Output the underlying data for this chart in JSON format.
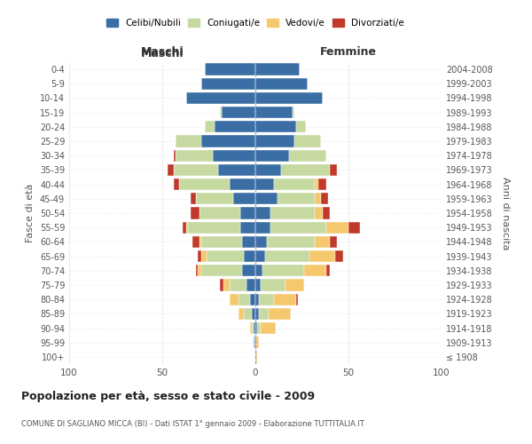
{
  "age_groups": [
    "100+",
    "95-99",
    "90-94",
    "85-89",
    "80-84",
    "75-79",
    "70-74",
    "65-69",
    "60-64",
    "55-59",
    "50-54",
    "45-49",
    "40-44",
    "35-39",
    "30-34",
    "25-29",
    "20-24",
    "15-19",
    "10-14",
    "5-9",
    "0-4"
  ],
  "birth_years": [
    "≤ 1908",
    "1909-1913",
    "1914-1918",
    "1919-1923",
    "1924-1928",
    "1929-1933",
    "1934-1938",
    "1939-1943",
    "1944-1948",
    "1949-1953",
    "1954-1958",
    "1959-1963",
    "1964-1968",
    "1969-1973",
    "1974-1978",
    "1979-1983",
    "1984-1988",
    "1989-1993",
    "1994-1998",
    "1999-2003",
    "2004-2008"
  ],
  "maschi": {
    "celibi": [
      0,
      1,
      1,
      2,
      3,
      5,
      7,
      6,
      7,
      8,
      8,
      12,
      14,
      20,
      23,
      29,
      22,
      18,
      37,
      29,
      27
    ],
    "coniugati": [
      0,
      0,
      1,
      4,
      6,
      9,
      22,
      20,
      22,
      28,
      22,
      20,
      27,
      24,
      20,
      14,
      5,
      1,
      0,
      0,
      0
    ],
    "vedovi": [
      0,
      0,
      1,
      3,
      5,
      3,
      2,
      3,
      1,
      1,
      0,
      0,
      0,
      0,
      0,
      0,
      0,
      0,
      0,
      0,
      0
    ],
    "divorziati": [
      0,
      0,
      0,
      0,
      0,
      2,
      1,
      2,
      4,
      2,
      5,
      3,
      3,
      3,
      1,
      0,
      0,
      0,
      0,
      0,
      0
    ]
  },
  "femmine": {
    "nubili": [
      0,
      0,
      1,
      2,
      2,
      3,
      4,
      5,
      6,
      8,
      8,
      12,
      10,
      14,
      18,
      21,
      22,
      20,
      36,
      28,
      24
    ],
    "coniugate": [
      0,
      0,
      2,
      5,
      8,
      13,
      22,
      24,
      26,
      30,
      24,
      20,
      22,
      26,
      20,
      14,
      5,
      1,
      0,
      0,
      0
    ],
    "vedove": [
      1,
      2,
      8,
      12,
      12,
      10,
      12,
      14,
      8,
      12,
      4,
      3,
      2,
      0,
      0,
      0,
      0,
      0,
      0,
      0,
      0
    ],
    "divorziate": [
      0,
      0,
      0,
      0,
      1,
      0,
      2,
      4,
      4,
      6,
      4,
      4,
      4,
      4,
      0,
      0,
      0,
      0,
      0,
      0,
      0
    ]
  },
  "colors": {
    "celibi": "#3a6ea5",
    "coniugati": "#c5d9a0",
    "vedovi": "#f5c86e",
    "divorziati": "#c0392b"
  },
  "xlim": 100,
  "title": "Popolazione per età, sesso e stato civile - 2009",
  "subtitle": "COMUNE DI SAGLIANO MICCA (BI) - Dati ISTAT 1° gennaio 2009 - Elaborazione TUTTITALIA.IT",
  "ylabel_left": "Fasce di età",
  "ylabel_right": "Anni di nascita",
  "xlabel_left": "Maschi",
  "xlabel_right": "Femmine",
  "background_color": "#ffffff",
  "grid_color": "#cccccc"
}
